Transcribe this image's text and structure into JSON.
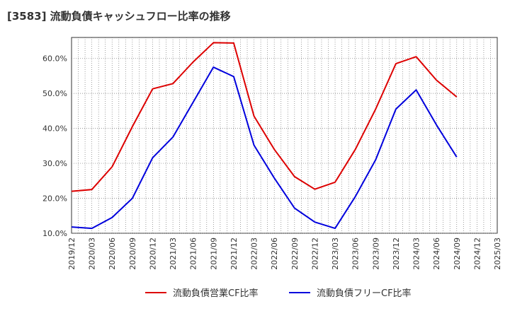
{
  "chart_data": {
    "type": "line",
    "title": "[3583]  流動負債キャッシュフロー比率の推移",
    "xlabel": "",
    "ylabel": "",
    "x_ticks": [
      "2019/12",
      "2020/03",
      "2020/06",
      "2020/09",
      "2020/12",
      "2021/03",
      "2021/06",
      "2021/09",
      "2021/12",
      "2022/03",
      "2022/06",
      "2022/09",
      "2022/12",
      "2023/03",
      "2023/06",
      "2023/09",
      "2023/12",
      "2024/03",
      "2024/06",
      "2024/09",
      "2024/12",
      "2025/03"
    ],
    "y_ticks": [
      "10.0%",
      "20.0%",
      "30.0%",
      "40.0%",
      "50.0%",
      "60.0%"
    ],
    "y_tick_values": [
      10,
      20,
      30,
      40,
      50,
      60
    ],
    "ylim": [
      10,
      66
    ],
    "grid": true,
    "legend_position": "bottom",
    "series": [
      {
        "name": "流動負債営業CF比率",
        "color": "#dd0000",
        "points": [
          [
            "2019/12",
            22.0
          ],
          [
            "2020/03",
            22.5
          ],
          [
            "2020/06",
            29.0
          ],
          [
            "2020/09",
            40.5
          ],
          [
            "2020/12",
            51.3
          ],
          [
            "2021/03",
            52.8
          ],
          [
            "2021/06",
            59.0
          ],
          [
            "2021/09",
            64.5
          ],
          [
            "2021/12",
            64.4
          ],
          [
            "2022/03",
            43.5
          ],
          [
            "2022/06",
            34.0
          ],
          [
            "2022/09",
            26.2
          ],
          [
            "2022/12",
            22.6
          ],
          [
            "2023/03",
            24.6
          ],
          [
            "2023/06",
            34.0
          ],
          [
            "2023/09",
            45.5
          ],
          [
            "2023/12",
            58.5
          ],
          [
            "2024/03",
            60.5
          ],
          [
            "2024/06",
            53.8
          ],
          [
            "2024/09",
            49.0
          ]
        ]
      },
      {
        "name": "流動負債フリーCF比率",
        "color": "#0000dd",
        "points": [
          [
            "2019/12",
            11.8
          ],
          [
            "2020/03",
            11.4
          ],
          [
            "2020/06",
            14.5
          ],
          [
            "2020/09",
            20.0
          ],
          [
            "2020/12",
            31.6
          ],
          [
            "2021/03",
            37.5
          ],
          [
            "2021/06",
            47.5
          ],
          [
            "2021/09",
            57.5
          ],
          [
            "2021/12",
            54.8
          ],
          [
            "2022/03",
            35.2
          ],
          [
            "2022/06",
            25.8
          ],
          [
            "2022/09",
            17.2
          ],
          [
            "2022/12",
            13.2
          ],
          [
            "2023/03",
            11.4
          ],
          [
            "2023/06",
            20.5
          ],
          [
            "2023/09",
            31.0
          ],
          [
            "2023/12",
            45.5
          ],
          [
            "2024/03",
            51.0
          ],
          [
            "2024/06",
            41.0
          ],
          [
            "2024/09",
            31.8
          ]
        ]
      }
    ]
  }
}
